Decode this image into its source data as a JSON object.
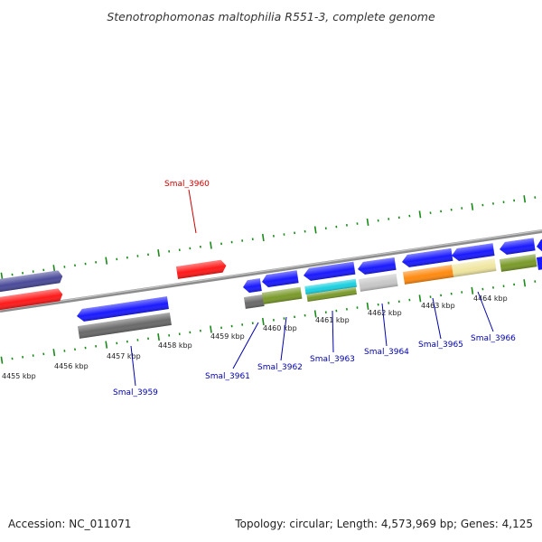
{
  "title": "Stenotrophomonas maltophilia R551-3, complete genome",
  "footer": {
    "accession": "Accession: NC_011071",
    "summary": "Topology: circular; Length: 4,573,969 bp; Genes: 4,125"
  },
  "scale_labels": [
    "4455 kbp",
    "4456 kbp",
    "4457 kbp",
    "4458 kbp",
    "4459 kbp",
    "4460 kbp",
    "4461 kbp",
    "4462 kbp",
    "4463 kbp",
    "4464 kbp"
  ],
  "gene_labels": [
    {
      "text": "Smal_3960",
      "strand": "forward",
      "color": "#cc0000"
    },
    {
      "text": "Smal_3959",
      "strand": "reverse",
      "color": "#0000aa"
    },
    {
      "text": "Smal_3961",
      "strand": "reverse",
      "color": "#0000aa"
    },
    {
      "text": "Smal_3962",
      "strand": "reverse",
      "color": "#0000aa"
    },
    {
      "text": "Smal_3963",
      "strand": "reverse",
      "color": "#0000aa"
    },
    {
      "text": "Smal_3964",
      "strand": "reverse",
      "color": "#0000aa"
    },
    {
      "text": "Smal_3965",
      "strand": "reverse",
      "color": "#0000aa"
    },
    {
      "text": "Smal_3966",
      "strand": "reverse",
      "color": "#0000aa"
    }
  ],
  "colors": {
    "backbone": "#8c8c8c",
    "tick": "#1a8a1a",
    "gene_red": "#ff1a1a",
    "gene_blue": "#1a1aff",
    "gene_navy": "#4a4a9a",
    "gene_dark_gray": "#6a6a6a",
    "gene_olive": "#7a9a2a",
    "gene_cyan": "#1ad0e0",
    "gene_light_gray": "#c8c8c8",
    "gene_orange": "#ff8a10",
    "gene_khaki": "#f0e6a0"
  }
}
